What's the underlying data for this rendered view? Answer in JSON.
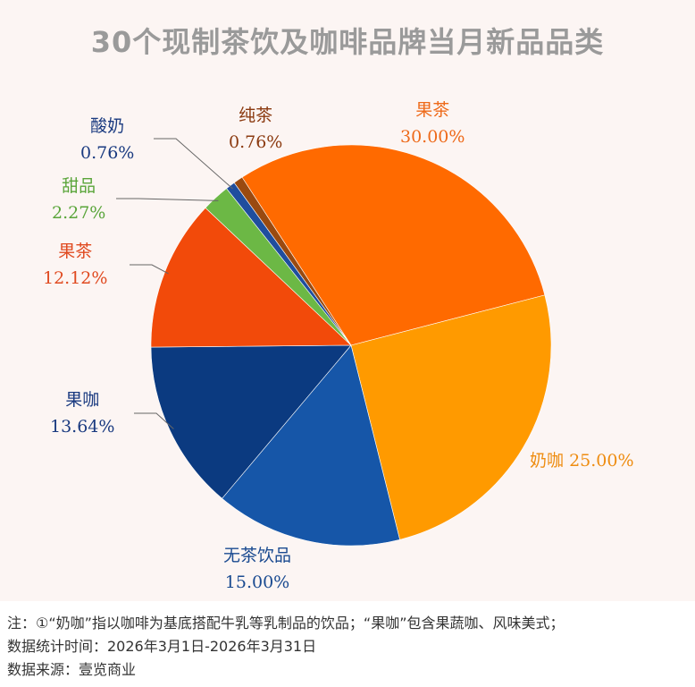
{
  "chart_data": {
    "type": "pie",
    "title": "30个现制茶饮及咖啡品牌当月新品品类",
    "slices": [
      {
        "name": "果茶",
        "value": 30.0,
        "label": "30.00%",
        "color": "#ff6a00",
        "label_color": "#ee6a1a"
      },
      {
        "name": "奶咖",
        "value": 25.0,
        "label": "25.00%",
        "color": "#ff9a00",
        "label_color": "#ee8c10"
      },
      {
        "name": "无茶饮品",
        "value": 15.0,
        "label": "15.00%",
        "color": "#1656a8",
        "label_color": "#1a4a90"
      },
      {
        "name": "果咖",
        "value": 13.64,
        "label": "13.64%",
        "color": "#0b3a80",
        "label_color": "#1a3a80"
      },
      {
        "name": "果茶",
        "value": 12.12,
        "label": "12.12%",
        "color": "#f24a0a",
        "label_color": "#e04a20"
      },
      {
        "name": "甜品",
        "value": 2.27,
        "label": "2.27%",
        "color": "#6cb845",
        "label_color": "#5aa53a"
      },
      {
        "name": "酸奶",
        "value": 0.76,
        "label": "0.76%",
        "color": "#1f4e9e",
        "label_color": "#1a3a80"
      },
      {
        "name": "纯茶",
        "value": 0.76,
        "label": "0.76%",
        "color": "#9a4a10",
        "label_color": "#8b3a10"
      }
    ]
  },
  "notes": [
    "注：①“奶咖”指以咖啡为基底搭配牛乳等乳制品的饮品；“果咖”包含果蔬咖、风味美式；",
    "数据统计时间：2026年3月1日-2026年3月31日",
    "数据来源：壹览商业"
  ]
}
